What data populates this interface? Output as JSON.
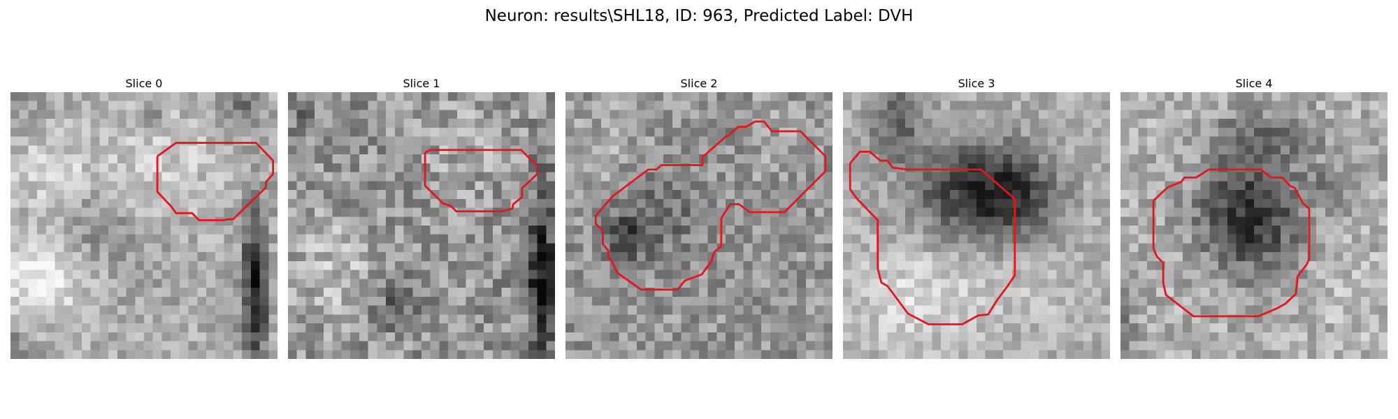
{
  "figure": {
    "title": "Neuron: results\\SHL18, ID: 963, Predicted Label: DVH"
  },
  "panels": [
    {
      "title": "Slice 0",
      "contour_color": "#e8141b"
    },
    {
      "title": "Slice 1",
      "contour_color": "#e8141b"
    },
    {
      "title": "Slice 2",
      "contour_color": "#e8141b"
    },
    {
      "title": "Slice 3",
      "contour_color": "#e8141b"
    },
    {
      "title": "Slice 4",
      "contour_color": "#e8141b"
    }
  ]
}
